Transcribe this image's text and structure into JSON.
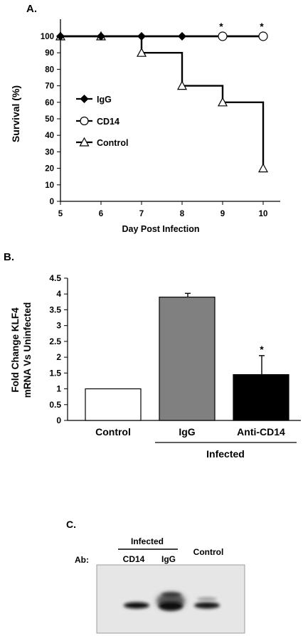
{
  "panels": {
    "a_label": "A.",
    "b_label": "B.",
    "c_label": "C."
  },
  "chart_data": [
    {
      "type": "line",
      "panel": "A.",
      "title": "",
      "xlabel": "Day Post Infection",
      "ylabel": "Survival (%)",
      "x": [
        5,
        6,
        7,
        8,
        9,
        10
      ],
      "xlim": [
        5,
        10
      ],
      "ylim": [
        0,
        100
      ],
      "yticks": [
        0,
        10,
        20,
        30,
        40,
        50,
        60,
        70,
        80,
        90,
        100
      ],
      "step": true,
      "grid": false,
      "legend_position": "left",
      "series": [
        {
          "name": "IgG",
          "marker": "filled-diamond",
          "y": [
            100,
            100,
            100,
            100,
            100,
            100
          ]
        },
        {
          "name": "CD14",
          "marker": "open-circle",
          "y": [
            100,
            100,
            100,
            100,
            100,
            100
          ]
        },
        {
          "name": "Control",
          "marker": "open-triangle",
          "y": [
            100,
            100,
            90,
            70,
            60,
            20
          ]
        }
      ],
      "annotations": [
        {
          "text": "*",
          "x": 9,
          "y": 100
        },
        {
          "text": "*",
          "x": 10,
          "y": 100
        }
      ]
    },
    {
      "type": "bar",
      "panel": "B.",
      "title": "",
      "xlabel": "",
      "ylabel_lines": [
        "Fold Change KLF4",
        "mRNA Vs Uninfected"
      ],
      "categories": [
        "Control",
        "IgG",
        "Anti-CD14"
      ],
      "values": [
        1.0,
        3.9,
        1.45
      ],
      "errors": [
        0,
        0.12,
        0.6
      ],
      "colors": [
        "#ffffff",
        "#808080",
        "#000000"
      ],
      "ylim": [
        0,
        4.5
      ],
      "yticks": [
        0,
        0.5,
        1,
        1.5,
        2,
        2.5,
        3,
        3.5,
        4,
        4.5
      ],
      "group_label": "Infected",
      "annotations": [
        {
          "text": "*",
          "category": "Anti-CD14"
        }
      ]
    }
  ],
  "blot": {
    "group_label": "Infected",
    "ab_label": "Ab:",
    "lanes": [
      "CD14",
      "IgG",
      "Control"
    ]
  }
}
